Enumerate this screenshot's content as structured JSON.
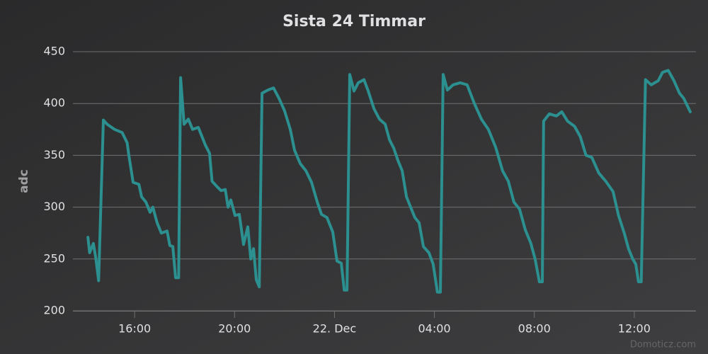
{
  "chart_data": {
    "type": "line",
    "title": "Sista 24 Timmar",
    "y_label": "adc",
    "credit": "Domoticz.com",
    "xlim": [
      13.53,
      38.47
    ],
    "xticks": [
      {
        "value": 16,
        "label": "16:00"
      },
      {
        "value": 20,
        "label": "20:00"
      },
      {
        "value": 24,
        "label": "22. Dec"
      },
      {
        "value": 28,
        "label": "04:00"
      },
      {
        "value": 32,
        "label": "08:00"
      },
      {
        "value": 36,
        "label": "12:00"
      }
    ],
    "ylim": [
      200,
      450
    ],
    "yticks": [
      200,
      250,
      300,
      350,
      400,
      450
    ],
    "grid": true,
    "series": [
      {
        "name": "adc",
        "color": "#2b908f",
        "x": [
          14.13,
          14.2,
          14.35,
          14.45,
          14.56,
          14.75,
          14.9,
          15.2,
          15.5,
          15.7,
          15.77,
          15.94,
          16.17,
          16.28,
          16.45,
          16.62,
          16.73,
          16.9,
          17.07,
          17.3,
          17.41,
          17.53,
          17.64,
          17.76,
          17.84,
          17.98,
          18.15,
          18.32,
          18.55,
          18.83,
          19.0,
          19.1,
          19.29,
          19.46,
          19.63,
          19.74,
          19.85,
          20.02,
          20.19,
          20.36,
          20.53,
          20.65,
          20.76,
          20.87,
          20.99,
          21.1,
          21.33,
          21.56,
          21.78,
          22.0,
          22.23,
          22.4,
          22.63,
          22.86,
          23.08,
          23.31,
          23.48,
          23.7,
          23.93,
          24.1,
          24.27,
          24.39,
          24.5,
          24.61,
          24.78,
          24.95,
          25.18,
          25.35,
          25.58,
          25.8,
          26.03,
          26.2,
          26.37,
          26.54,
          26.71,
          26.88,
          27.05,
          27.22,
          27.39,
          27.56,
          27.78,
          27.95,
          28.12,
          28.24,
          28.35,
          28.52,
          28.75,
          29.03,
          29.31,
          29.6,
          29.88,
          30.16,
          30.45,
          30.73,
          30.96,
          31.18,
          31.41,
          31.64,
          31.86,
          32.03,
          32.2,
          32.32,
          32.37,
          32.6,
          32.88,
          33.1,
          33.33,
          33.61,
          33.84,
          34.07,
          34.3,
          34.58,
          34.86,
          35.15,
          35.37,
          35.6,
          35.77,
          35.94,
          36.06,
          36.17,
          36.28,
          36.45,
          36.68,
          36.96,
          37.13,
          37.36,
          37.59,
          37.81,
          37.98,
          38.24
        ],
        "values": [
          271,
          256,
          265,
          250,
          229,
          384,
          380,
          375,
          372,
          362,
          350,
          324,
          322,
          310,
          305,
          295,
          300,
          285,
          275,
          277,
          263,
          262,
          232,
          232,
          425,
          380,
          385,
          375,
          377,
          360,
          352,
          325,
          320,
          316,
          317,
          300,
          307,
          292,
          293,
          264,
          281,
          250,
          260,
          230,
          223,
          410,
          413,
          415,
          405,
          393,
          375,
          355,
          342,
          335,
          324,
          305,
          293,
          290,
          276,
          248,
          246,
          220,
          220,
          428,
          412,
          420,
          423,
          412,
          395,
          385,
          380,
          365,
          357,
          345,
          335,
          310,
          300,
          290,
          285,
          262,
          256,
          245,
          218,
          218,
          428,
          413,
          418,
          420,
          418,
          400,
          385,
          375,
          358,
          335,
          325,
          305,
          298,
          278,
          265,
          250,
          228,
          228,
          383,
          390,
          388,
          392,
          383,
          378,
          368,
          350,
          348,
          333,
          325,
          315,
          292,
          275,
          260,
          250,
          245,
          228,
          228,
          423,
          418,
          422,
          430,
          432,
          422,
          410,
          405,
          392
        ]
      }
    ]
  }
}
